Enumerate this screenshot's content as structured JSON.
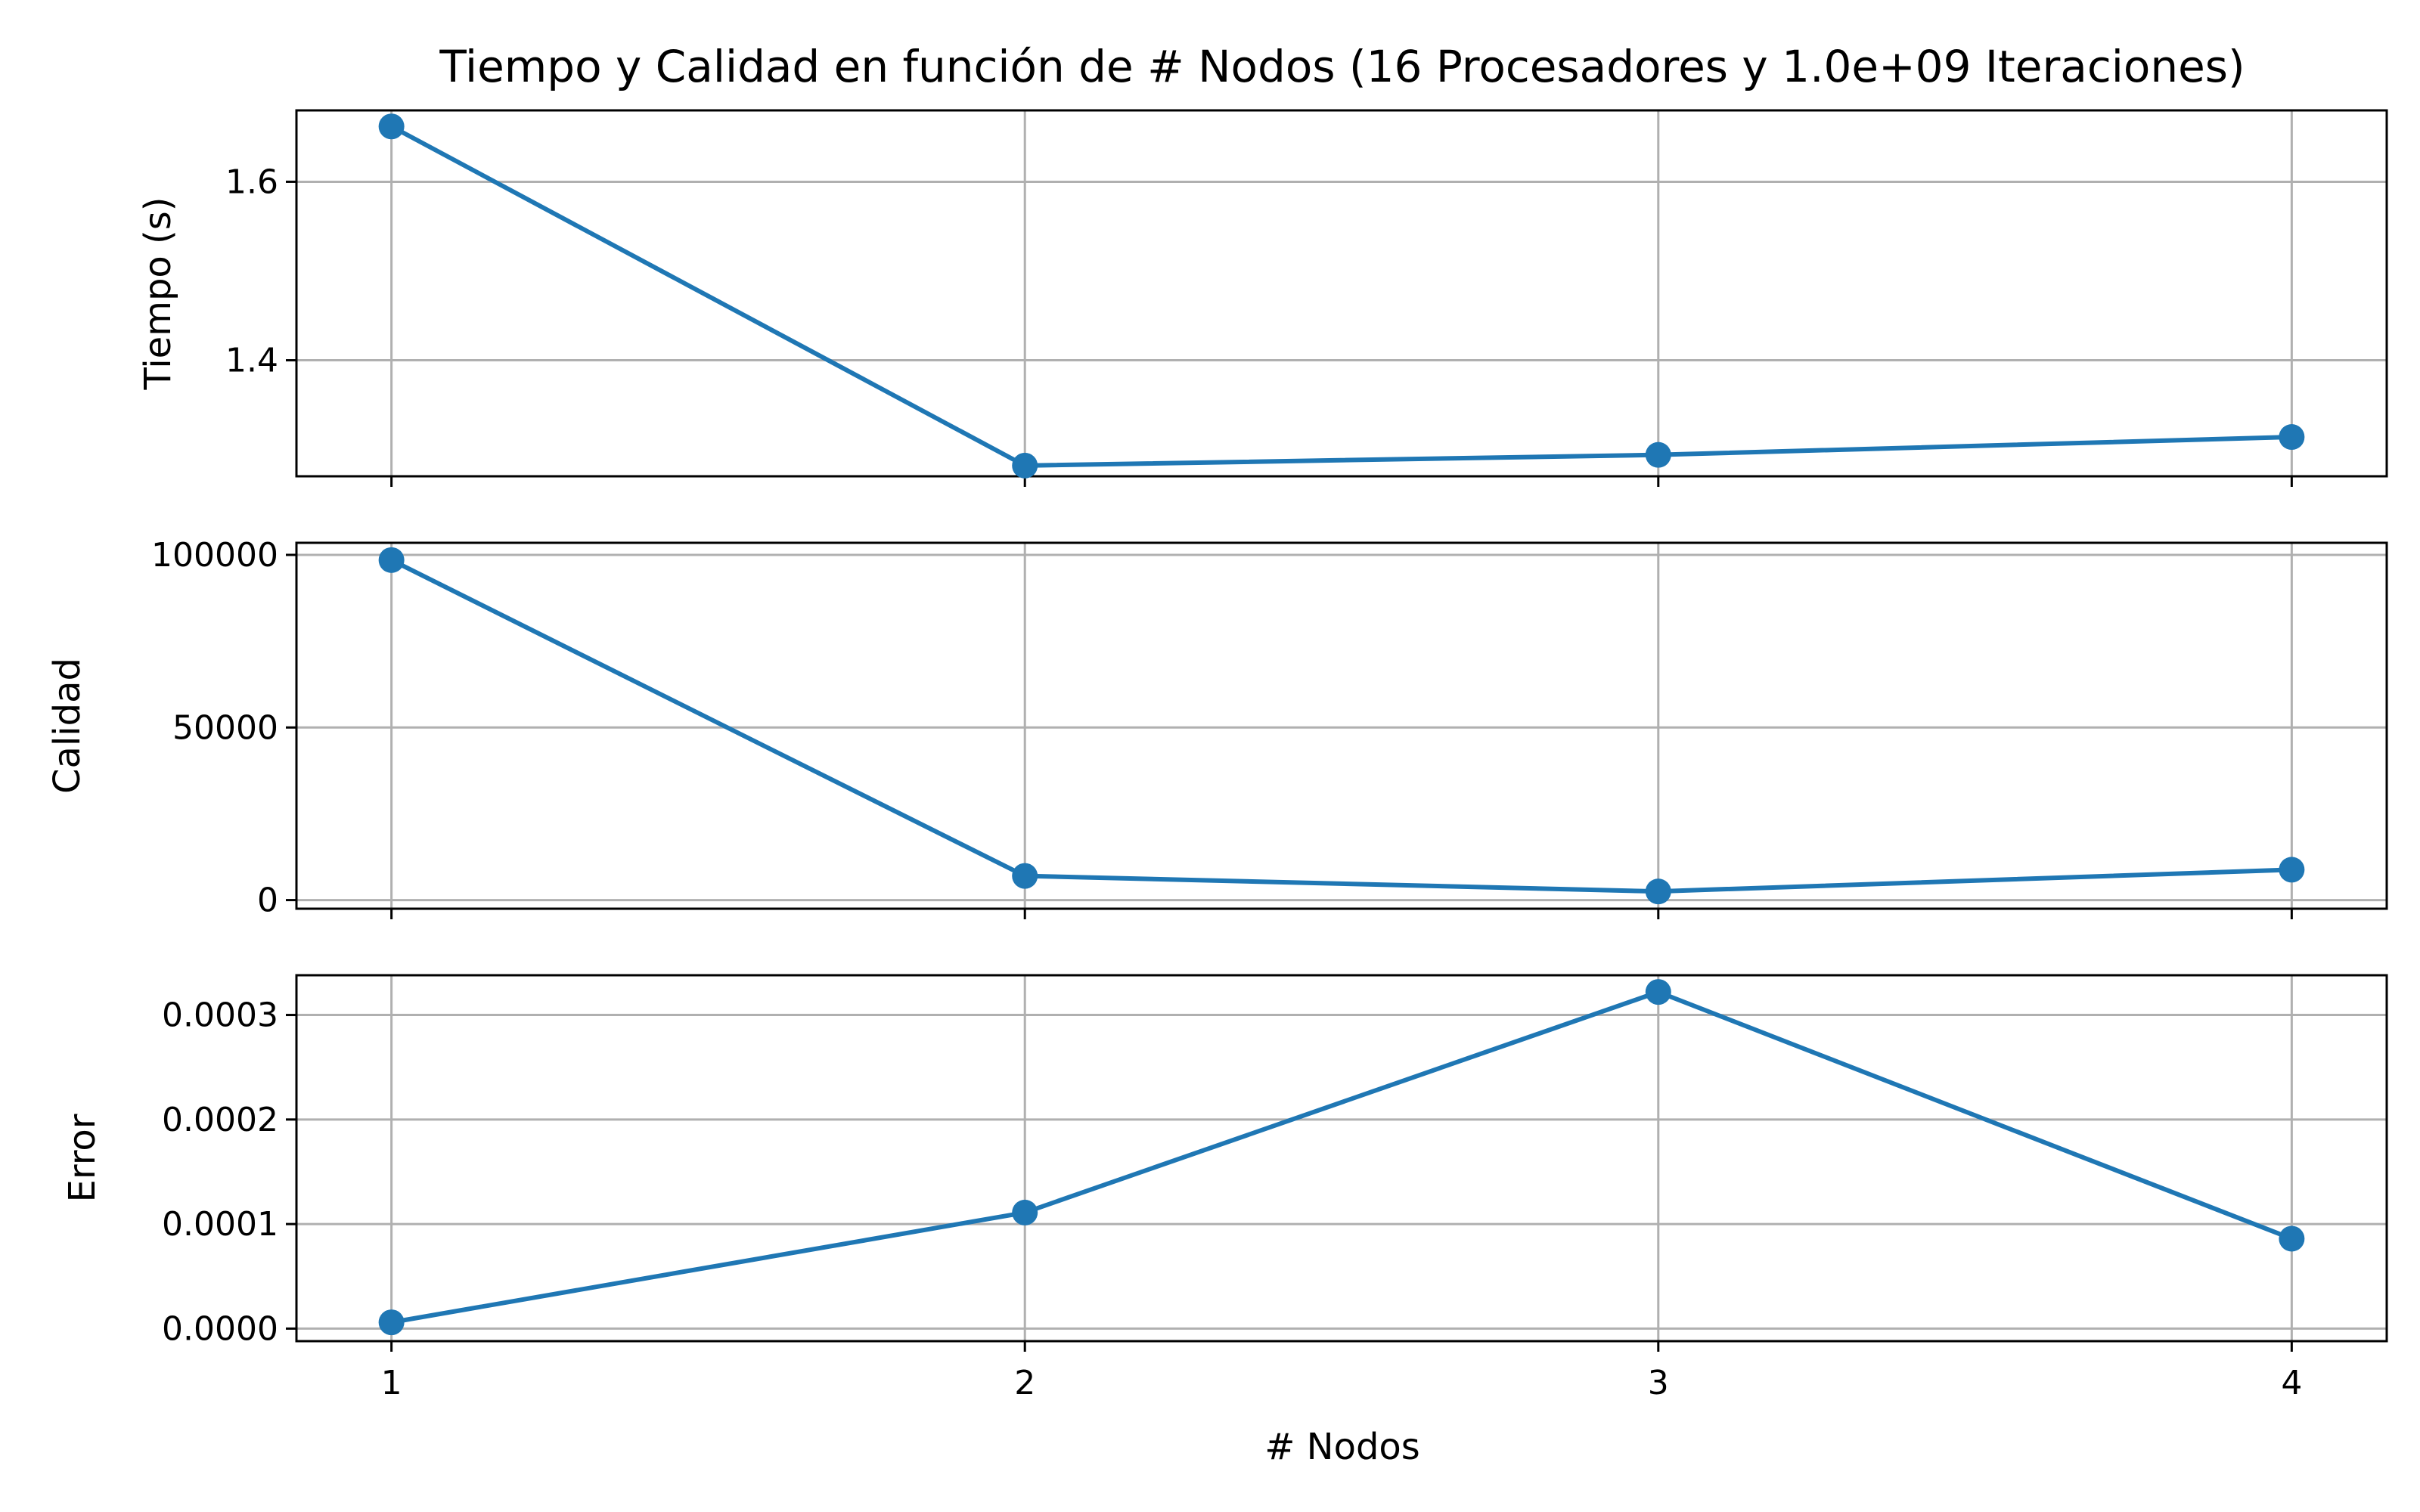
{
  "chart_data": {
    "type": "line",
    "title": "Tiempo y Calidad en función de # Nodos (16 Procesadores y 1.0e+09 Iteraciones)",
    "xlabel": "# Nodos",
    "x": [
      1,
      2,
      3,
      4
    ],
    "x_tick_labels": [
      "1",
      "2",
      "3",
      "4"
    ],
    "color": "#1f77b4",
    "grid": true,
    "subplots": [
      {
        "ylabel": "Tiempo (s)",
        "ylim": [
          1.27,
          1.68
        ],
        "y_ticks": [
          1.4,
          1.6
        ],
        "y_tick_labels": [
          "1.4",
          "1.6"
        ],
        "values": [
          1.662,
          1.282,
          1.294,
          1.314
        ]
      },
      {
        "ylabel": "Calidad",
        "ylim": [
          -2500,
          103500
        ],
        "y_ticks": [
          0,
          50000,
          100000
        ],
        "y_tick_labels": [
          "0",
          "50000",
          "100000"
        ],
        "values": [
          98500,
          7000,
          2500,
          8800
        ]
      },
      {
        "ylabel": "Error",
        "ylim": [
          -1.2e-05,
          0.000338
        ],
        "y_ticks": [
          0,
          0.0001,
          0.0002,
          0.0003
        ],
        "y_tick_labels": [
          "0.0000",
          "0.0001",
          "0.0002",
          "0.0003"
        ],
        "values": [
          6e-06,
          0.000111,
          0.000322,
          8.6e-05
        ]
      }
    ]
  }
}
